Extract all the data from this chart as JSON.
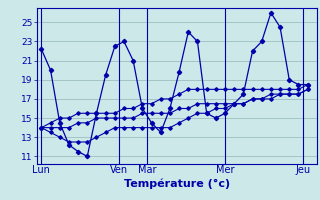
{
  "background_color": "#cce8e8",
  "grid_color": "#9bbfbf",
  "line_color": "#0000aa",
  "xlabel": "Température (°c)",
  "xlabel_fontsize": 8,
  "ylabel_ticks": [
    11,
    13,
    15,
    17,
    19,
    21,
    23,
    25
  ],
  "day_labels": [
    "Lun",
    "Ven",
    "Mar",
    "Mer",
    "Jeu"
  ],
  "day_x": [
    0,
    8.5,
    11.5,
    20,
    28.5
  ],
  "ylim": [
    10.2,
    26.5
  ],
  "xlim": [
    -0.5,
    30
  ],
  "series_main": [
    22.2,
    20.0,
    14.5,
    12.2,
    11.5,
    11.0,
    15.5,
    19.5,
    22.5,
    23.0,
    21.0,
    16.0,
    14.5,
    13.5,
    16.0,
    19.8,
    24.0,
    23.0,
    15.5,
    15.0,
    15.5,
    16.5,
    17.5,
    22.0,
    23.0,
    26.0,
    24.5,
    19.0,
    18.5,
    18.5
  ],
  "series_t1": [
    14.0,
    14.5,
    15.0,
    15.0,
    15.5,
    15.5,
    15.5,
    15.5,
    15.5,
    16.0,
    16.0,
    16.5,
    16.5,
    17.0,
    17.0,
    17.5,
    18.0,
    18.0,
    18.0,
    18.0,
    18.0,
    18.0,
    18.0,
    18.0,
    18.0,
    18.0,
    18.0,
    18.0,
    18.0,
    18.5
  ],
  "series_t2": [
    14.0,
    13.5,
    13.0,
    12.5,
    12.5,
    12.5,
    13.0,
    13.5,
    14.0,
    14.0,
    14.0,
    14.0,
    14.0,
    14.0,
    14.0,
    14.5,
    15.0,
    15.5,
    15.5,
    16.0,
    16.0,
    16.5,
    16.5,
    17.0,
    17.0,
    17.5,
    17.5,
    17.5,
    17.5,
    18.0
  ],
  "series_t3": [
    14.0,
    14.0,
    14.0,
    14.0,
    14.5,
    14.5,
    15.0,
    15.0,
    15.0,
    15.0,
    15.0,
    15.5,
    15.5,
    15.5,
    15.5,
    16.0,
    16.0,
    16.5,
    16.5,
    16.5,
    16.5,
    16.5,
    16.5,
    17.0,
    17.0,
    17.0,
    17.5,
    17.5,
    17.5,
    18.0
  ]
}
